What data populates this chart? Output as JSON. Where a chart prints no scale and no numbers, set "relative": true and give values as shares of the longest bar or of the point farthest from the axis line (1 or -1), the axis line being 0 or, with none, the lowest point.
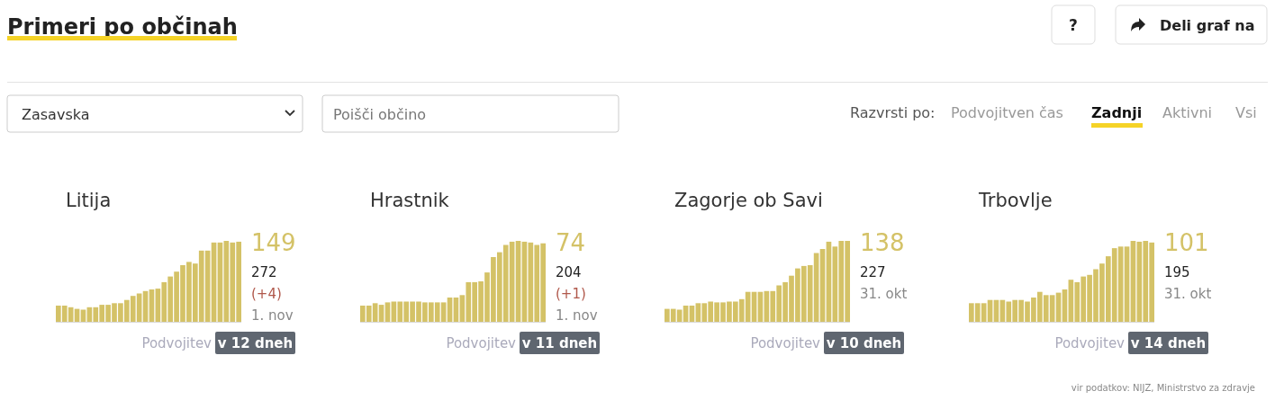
{
  "chart_data": [
    {
      "type": "other",
      "title": "Primeri po občinah",
      "annotations": [
        "?",
        "Deli graf na",
        "Zasavska",
        "Poišči občino",
        "Razvrsti po:",
        "Podvojitven čas",
        "Zadnji",
        "Aktivni",
        "Vsi",
        "vir podatkov: NIJZ, Ministrstvo za zdravje"
      ]
    },
    {
      "type": "bar",
      "title": "Litija",
      "relative": true,
      "categories": [
        null,
        null,
        null,
        null,
        null,
        null,
        null,
        null,
        null,
        null,
        null,
        null,
        null,
        null,
        null,
        null,
        null,
        null,
        null,
        null,
        null,
        null,
        null,
        null,
        null,
        null,
        null,
        null,
        null,
        null
      ],
      "values": [
        0.2,
        0.2,
        0.18,
        0.16,
        0.15,
        0.18,
        0.18,
        0.21,
        0.21,
        0.23,
        0.23,
        0.27,
        0.32,
        0.35,
        0.38,
        0.4,
        0.41,
        0.49,
        0.56,
        0.62,
        0.7,
        0.74,
        0.72,
        0.88,
        0.88,
        0.98,
        0.98,
        1,
        0.98,
        0.99
      ],
      "color": "#d4c267",
      "annotations": [
        "149",
        "272",
        "(+4)",
        "1. nov",
        "Podvojitev",
        "v 12 dneh"
      ]
    },
    {
      "type": "bar",
      "title": "Hrastnik",
      "relative": true,
      "categories": [
        null,
        null,
        null,
        null,
        null,
        null,
        null,
        null,
        null,
        null,
        null,
        null,
        null,
        null,
        null,
        null,
        null,
        null,
        null,
        null,
        null,
        null,
        null,
        null,
        null,
        null,
        null,
        null,
        null,
        null
      ],
      "values": [
        0.2,
        0.2,
        0.23,
        0.21,
        0.24,
        0.25,
        0.25,
        0.25,
        0.25,
        0.25,
        0.24,
        0.24,
        0.24,
        0.24,
        0.3,
        0.3,
        0.33,
        0.49,
        0.49,
        0.5,
        0.61,
        0.8,
        0.86,
        0.95,
        0.99,
        1,
        0.99,
        0.98,
        0.95,
        0.97
      ],
      "color": "#d4c267",
      "annotations": [
        "74",
        "204",
        "(+1)",
        "1. nov",
        "Podvojitev",
        "v 11 dneh"
      ]
    },
    {
      "type": "bar",
      "title": "Zagorje ob Savi",
      "relative": true,
      "categories": [
        null,
        null,
        null,
        null,
        null,
        null,
        null,
        null,
        null,
        null,
        null,
        null,
        null,
        null,
        null,
        null,
        null,
        null,
        null,
        null,
        null,
        null,
        null,
        null,
        null,
        null,
        null,
        null,
        null,
        null
      ],
      "values": [
        0.16,
        0.16,
        0.15,
        0.2,
        0.2,
        0.23,
        0.23,
        0.25,
        0.24,
        0.24,
        0.25,
        0.25,
        0.28,
        0.37,
        0.37,
        0.37,
        0.38,
        0.38,
        0.45,
        0.49,
        0.57,
        0.66,
        0.69,
        0.7,
        0.85,
        0.9,
        0.99,
        0.93,
        1,
        1
      ],
      "color": "#d4c267",
      "annotations": [
        "138",
        "227",
        "31. okt",
        "Podvojitev",
        "v 10 dneh"
      ]
    },
    {
      "type": "bar",
      "title": "Trbovlje",
      "relative": true,
      "categories": [
        null,
        null,
        null,
        null,
        null,
        null,
        null,
        null,
        null,
        null,
        null,
        null,
        null,
        null,
        null,
        null,
        null,
        null,
        null,
        null,
        null,
        null,
        null,
        null,
        null,
        null,
        null,
        null,
        null,
        null
      ],
      "values": [
        0.23,
        0.23,
        0.23,
        0.27,
        0.27,
        0.27,
        0.25,
        0.27,
        0.27,
        0.25,
        0.3,
        0.37,
        0.33,
        0.33,
        0.36,
        0.4,
        0.52,
        0.49,
        0.56,
        0.58,
        0.65,
        0.72,
        0.81,
        0.91,
        0.93,
        0.93,
        1,
        0.99,
        1,
        0.98
      ],
      "color": "#d4c267",
      "annotations": [
        "101",
        "195",
        "31. okt",
        "Podvojitev",
        "v 14 dneh"
      ]
    }
  ]
}
